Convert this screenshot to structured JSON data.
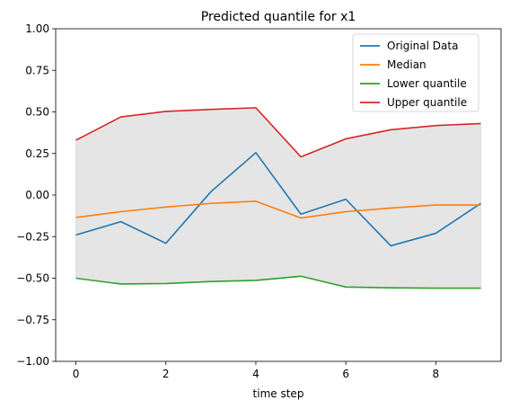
{
  "chart_data": {
    "type": "line",
    "title": "Predicted quantile for x1",
    "xlabel": "time step",
    "ylabel": "",
    "xlim": [
      -0.45,
      9.45
    ],
    "ylim": [
      -1.0,
      1.0
    ],
    "xticks": [
      0,
      2,
      4,
      6,
      8
    ],
    "yticks": [
      -1.0,
      -0.75,
      -0.5,
      -0.25,
      0.0,
      0.25,
      0.5,
      0.75,
      1.0
    ],
    "ytick_labels": [
      "−1.00",
      "−0.75",
      "−0.50",
      "−0.25",
      "0.00",
      "0.25",
      "0.50",
      "0.75",
      "1.00"
    ],
    "grid": false,
    "legend_position": "top-right",
    "x": [
      0,
      1,
      2,
      3,
      4,
      5,
      6,
      7,
      8,
      9
    ],
    "band": {
      "lower_series": 2,
      "upper_series": 3,
      "color": "#e5e5e5"
    },
    "series": [
      {
        "name": "Original Data",
        "color": "#1f77b4",
        "values": [
          -0.24,
          -0.16,
          -0.29,
          0.02,
          0.255,
          -0.115,
          -0.025,
          -0.305,
          -0.23,
          -0.05
        ]
      },
      {
        "name": "Median",
        "color": "#ff7f0e",
        "values": [
          -0.135,
          -0.1,
          -0.072,
          -0.05,
          -0.037,
          -0.138,
          -0.1,
          -0.078,
          -0.06,
          -0.06
        ]
      },
      {
        "name": "Lower quantile",
        "color": "#2ca02c",
        "values": [
          -0.5,
          -0.535,
          -0.532,
          -0.52,
          -0.513,
          -0.488,
          -0.553,
          -0.558,
          -0.56,
          -0.56
        ]
      },
      {
        "name": "Upper quantile",
        "color": "#d62728",
        "values": [
          0.33,
          0.47,
          0.503,
          0.515,
          0.525,
          0.23,
          0.338,
          0.393,
          0.418,
          0.43
        ]
      }
    ]
  }
}
